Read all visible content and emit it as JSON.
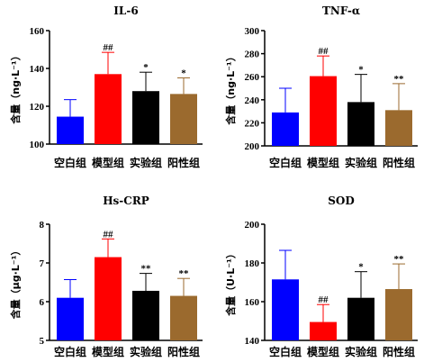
{
  "colors": {
    "blank": "#0000ff",
    "model": "#ff0000",
    "experiment": "#000000",
    "positive": "#9b6a2e"
  },
  "chart_data": [
    {
      "type": "bar",
      "title": "IL-6",
      "ylabel": "含量（ng·L⁻¹）",
      "categories": [
        "空白组",
        "模型组",
        "实验组",
        "阳性组"
      ],
      "values": [
        114.5,
        137,
        128,
        126.5
      ],
      "errors": [
        9,
        11.5,
        10,
        8.5
      ],
      "significance": [
        "",
        "##",
        "*",
        "*"
      ],
      "ylim": [
        100,
        160
      ],
      "yticks": [
        "100",
        "120",
        "140",
        "160"
      ]
    },
    {
      "type": "bar",
      "title": "TNF-α",
      "ylabel": "含量（ng·L⁻¹）",
      "categories": [
        "空白组",
        "模型组",
        "实验组",
        "阳性组"
      ],
      "values": [
        229,
        260.5,
        238,
        231
      ],
      "errors": [
        21,
        17.5,
        24,
        23
      ],
      "significance": [
        "",
        "##",
        "*",
        "**"
      ],
      "ylim": [
        200,
        300
      ],
      "yticks": [
        "200",
        "220",
        "240",
        "260",
        "280",
        "300"
      ]
    },
    {
      "type": "bar",
      "title": "Hs-CRP",
      "ylabel": "含量（μg·L⁻¹）",
      "categories": [
        "空白组",
        "模型组",
        "实验组",
        "阳性组"
      ],
      "values": [
        6.1,
        7.15,
        6.28,
        6.15
      ],
      "errors": [
        0.47,
        0.47,
        0.45,
        0.45
      ],
      "significance": [
        "",
        "##",
        "**",
        "**"
      ],
      "ylim": [
        5,
        8
      ],
      "yticks": [
        "5",
        "6",
        "7",
        "8"
      ]
    },
    {
      "type": "bar",
      "title": "SOD",
      "ylabel": "含量（U·L⁻¹）",
      "categories": [
        "空白组",
        "模型组",
        "实验组",
        "阳性组"
      ],
      "values": [
        171.5,
        149.5,
        162,
        166.5
      ],
      "errors": [
        15,
        9,
        13.5,
        13
      ],
      "significance": [
        "",
        "##",
        "*",
        "**"
      ],
      "ylim": [
        140,
        200
      ],
      "yticks": [
        "140",
        "160",
        "180",
        "200"
      ]
    }
  ]
}
